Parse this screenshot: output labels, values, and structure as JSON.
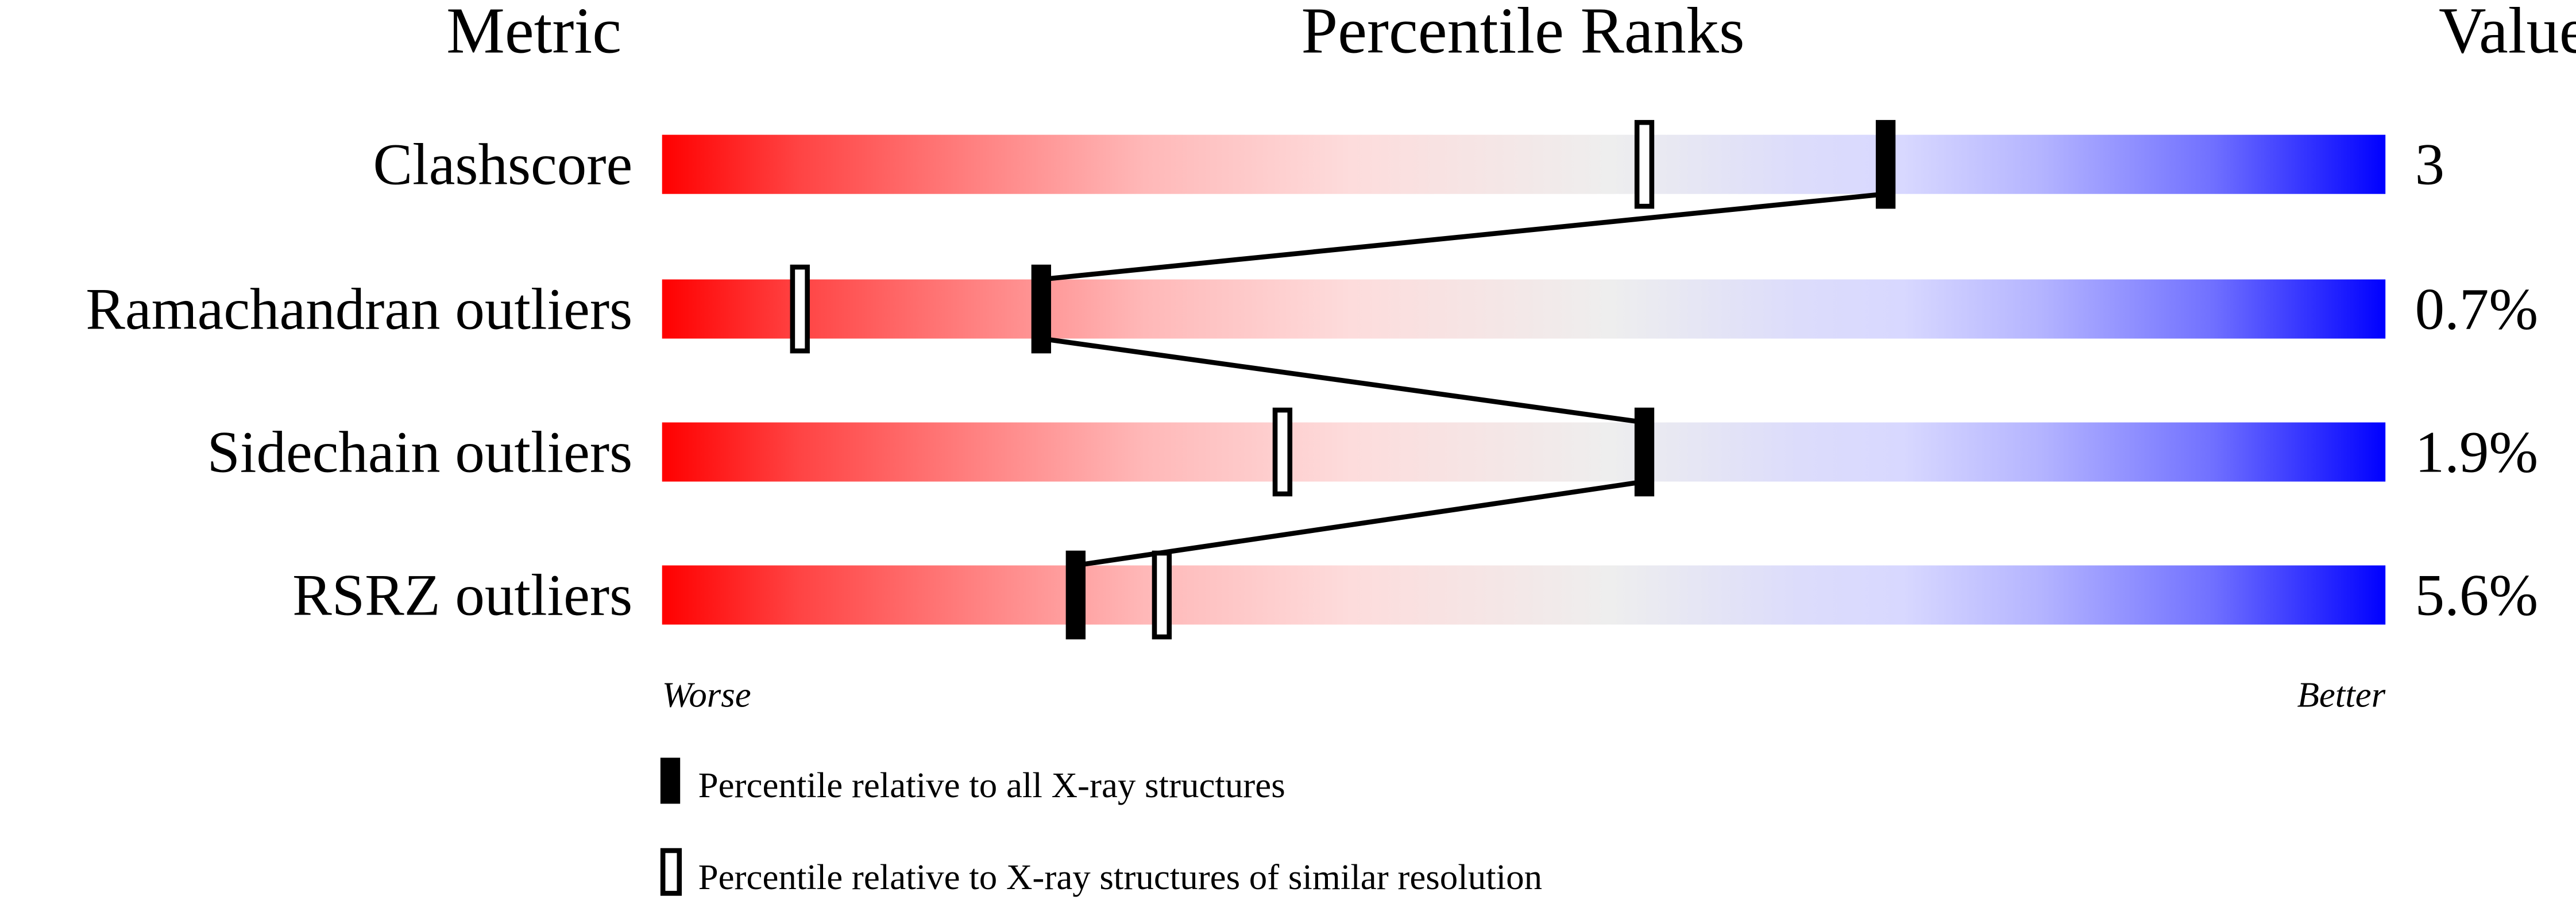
{
  "chart_data": {
    "type": "percentile-slider",
    "headers": {
      "metric": "Metric",
      "percentile": "Percentile Ranks",
      "value": "Value"
    },
    "xlim": [
      0,
      100
    ],
    "axis_labels": {
      "left": "Worse",
      "right": "Better"
    },
    "rows": [
      {
        "metric": "Clashscore",
        "value": "3",
        "percentile_all": 71,
        "percentile_similar": 57
      },
      {
        "metric": "Ramachandran outliers",
        "value": "0.7%",
        "percentile_all": 22,
        "percentile_similar": 8
      },
      {
        "metric": "Sidechain outliers",
        "value": "1.9%",
        "percentile_all": 57,
        "percentile_similar": 36
      },
      {
        "metric": "RSRZ outliers",
        "value": "5.6%",
        "percentile_all": 24,
        "percentile_similar": 29
      }
    ],
    "legend": {
      "filled": "Percentile relative to all X-ray structures",
      "open": "Percentile relative to X-ray structures of similar resolution",
      "placement": "bottom"
    },
    "colors": {
      "worse": "#ff0000",
      "middle": "#eeeeee",
      "better": "#0000ff",
      "marker": "#000000"
    }
  }
}
